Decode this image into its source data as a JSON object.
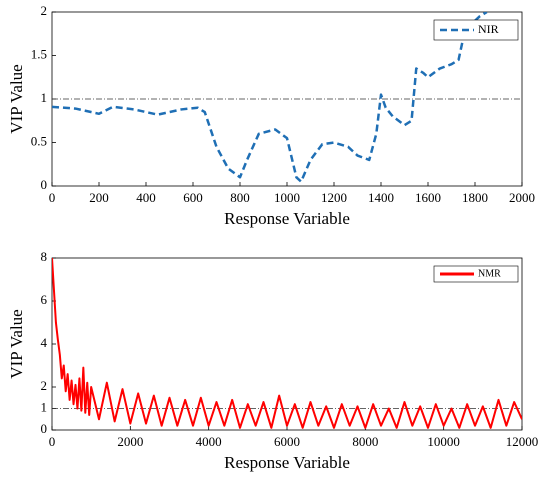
{
  "chart_data": [
    {
      "type": "line",
      "xlabel": "Response Variable",
      "ylabel": "VIP Value",
      "x": [
        0,
        100,
        200,
        260,
        350,
        450,
        550,
        620,
        650,
        700,
        750,
        800,
        830,
        880,
        950,
        1000,
        1040,
        1060,
        1100,
        1150,
        1200,
        1260,
        1300,
        1350,
        1380,
        1400,
        1420,
        1450,
        1500,
        1530,
        1550,
        1580,
        1600,
        1650,
        1700,
        1730,
        1750,
        1780,
        1820,
        1850
      ],
      "series": [
        {
          "name": "NIR",
          "color": "#1f6fb5",
          "linestyle": "dashed",
          "values": [
            0.91,
            0.89,
            0.83,
            0.91,
            0.88,
            0.82,
            0.88,
            0.9,
            0.85,
            0.45,
            0.2,
            0.1,
            0.3,
            0.6,
            0.65,
            0.55,
            0.1,
            0.05,
            0.3,
            0.48,
            0.5,
            0.45,
            0.35,
            0.3,
            0.6,
            1.05,
            0.9,
            0.8,
            0.7,
            0.75,
            1.35,
            1.3,
            1.25,
            1.35,
            1.4,
            1.45,
            1.7,
            1.85,
            1.95,
            2.0
          ]
        }
      ],
      "xlim": [
        0,
        2000
      ],
      "ylim": [
        0,
        2
      ],
      "xticks": [
        0,
        200,
        400,
        600,
        800,
        1000,
        1200,
        1400,
        1600,
        1800,
        2000
      ],
      "yticks": [
        0,
        0.5,
        1,
        1.5,
        2
      ],
      "reference_line": 1,
      "legend": "upper right"
    },
    {
      "type": "line",
      "xlabel": "Response Variable",
      "ylabel": "VIP Value",
      "x": [
        0,
        50,
        100,
        150,
        200,
        250,
        300,
        350,
        400,
        450,
        500,
        550,
        600,
        650,
        700,
        750,
        800,
        850,
        900,
        950,
        1000,
        1200,
        1400,
        1600,
        1800,
        2000,
        2200,
        2400,
        2600,
        2800,
        3000,
        3200,
        3400,
        3600,
        3800,
        4000,
        4200,
        4400,
        4600,
        4800,
        5000,
        5200,
        5400,
        5600,
        5800,
        6000,
        6200,
        6400,
        6600,
        6800,
        7000,
        7200,
        7400,
        7600,
        7800,
        8000,
        8200,
        8400,
        8600,
        8800,
        9000,
        9200,
        9400,
        9600,
        9800,
        10000,
        10200,
        10400,
        10600,
        10800,
        11000,
        11200,
        11400,
        11600,
        11800,
        12000
      ],
      "series": [
        {
          "name": "NMR",
          "color": "#ff0000",
          "linestyle": "solid",
          "values": [
            8,
            6.5,
            5.0,
            4.2,
            3.5,
            2.4,
            3.0,
            1.8,
            2.6,
            1.4,
            2.3,
            1.2,
            2.1,
            1.0,
            2.4,
            0.9,
            2.9,
            0.8,
            2.2,
            0.7,
            2.0,
            0.5,
            2.2,
            0.4,
            1.9,
            0.3,
            1.7,
            0.3,
            1.6,
            0.2,
            1.5,
            0.2,
            1.4,
            0.2,
            1.5,
            0.2,
            1.3,
            0.2,
            1.4,
            0.1,
            1.2,
            0.2,
            1.3,
            0.1,
            1.6,
            0.2,
            1.2,
            0.1,
            1.3,
            0.2,
            1.1,
            0.1,
            1.2,
            0.2,
            1.1,
            0.1,
            1.2,
            0.2,
            1.0,
            0.1,
            1.3,
            0.2,
            1.1,
            0.1,
            1.2,
            0.2,
            1.0,
            0.1,
            1.2,
            0.2,
            1.1,
            0.1,
            1.4,
            0.2,
            1.3,
            0.5
          ]
        }
      ],
      "xlim": [
        0,
        12000
      ],
      "ylim": [
        0,
        8
      ],
      "xticks": [
        0,
        2000,
        4000,
        6000,
        8000,
        10000,
        12000
      ],
      "yticks": [
        0,
        1,
        2,
        4,
        6,
        8
      ],
      "reference_line": 1,
      "legend": "upper right"
    }
  ]
}
